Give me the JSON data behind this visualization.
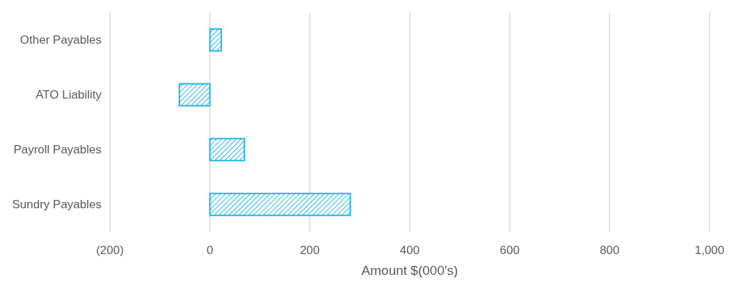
{
  "chart_data": {
    "type": "bar",
    "orientation": "horizontal",
    "xlabel": "Amount $(000's)",
    "categories": [
      "Other Payables",
      "ATO Liability",
      "Payroll Payables",
      "Sundry Payables"
    ],
    "values": [
      23,
      -61,
      69,
      281
    ],
    "color": "#1fb3ec",
    "xlim": [
      -200,
      1000
    ],
    "xticks": [
      {
        "value": -200,
        "label": "(200)"
      },
      0,
      200,
      400,
      600,
      800,
      {
        "value": 1000,
        "label": "1,000"
      }
    ],
    "grid": "x"
  }
}
